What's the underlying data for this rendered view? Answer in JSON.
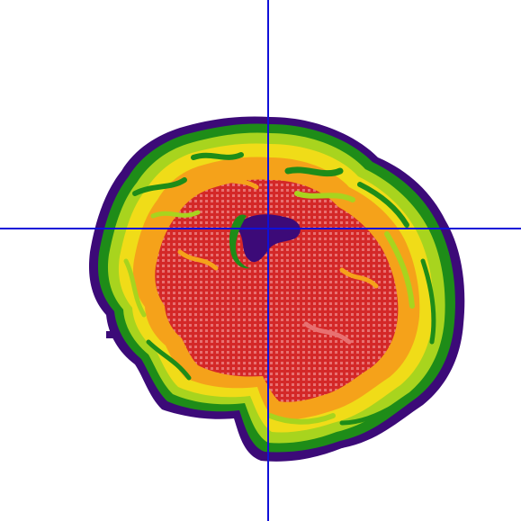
{
  "viewer": {
    "background_color": "#ffffff",
    "view": "sagittal",
    "crosshair_color": "#1010d8",
    "colormap": {
      "edge": "#3c0a78",
      "low": "#1e8c18",
      "mid_low": "#a8d41e",
      "mid": "#f0dc18",
      "mid_high": "#f5a21a",
      "high": "#e87070",
      "peak": "#d42828"
    }
  }
}
